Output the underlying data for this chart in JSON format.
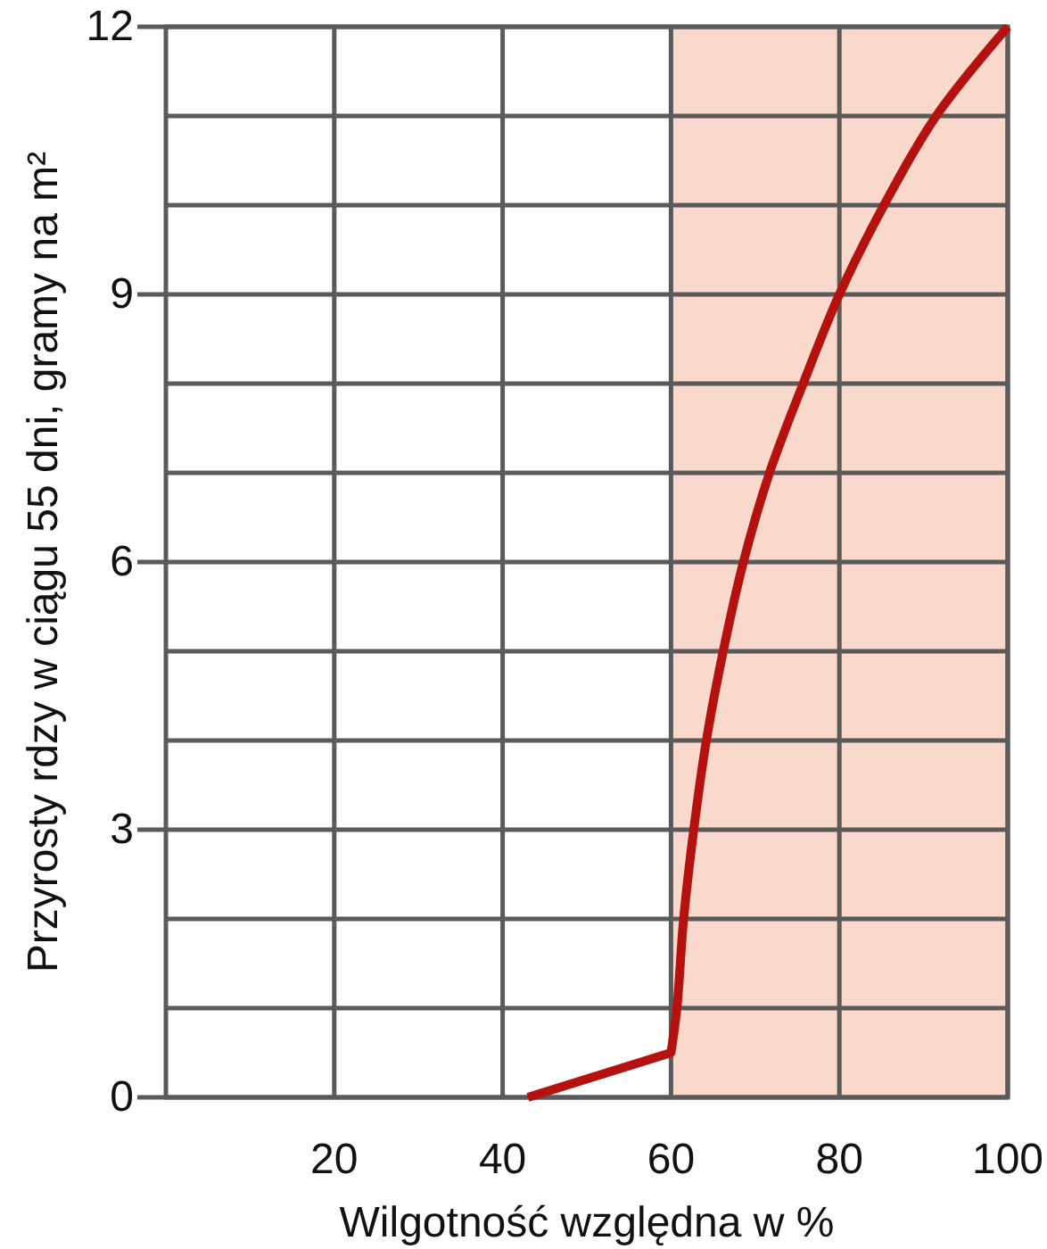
{
  "chart_data": {
    "type": "line",
    "xlabel": "Wilgotność względna w %",
    "ylabel": "Przyrosty rdzy w ciągu 55 dni, gramy na m²",
    "x": [
      43,
      60,
      60.7,
      61.5,
      62.7,
      64.2,
      66.2,
      68.6,
      71.7,
      75.7,
      80,
      85.3,
      91.5,
      100
    ],
    "series": [
      {
        "color": "#b5120f",
        "values": [
          0,
          0.5,
          1,
          2,
          3,
          4,
          5,
          6,
          7,
          8,
          9,
          10,
          11,
          12
        ]
      }
    ],
    "xlim": [
      0,
      100
    ],
    "xticks": [
      20,
      40,
      60,
      80,
      100
    ],
    "ylim": [
      0,
      12
    ],
    "yticks": [
      0,
      {
        "value": 1,
        "label": null
      },
      {
        "value": 2,
        "label": null
      },
      3,
      {
        "value": 4,
        "label": null
      },
      {
        "value": 5,
        "label": null
      },
      6,
      {
        "value": 7,
        "label": null
      },
      {
        "value": 8,
        "label": null
      },
      9,
      {
        "value": 10,
        "label": null
      },
      {
        "value": 11,
        "label": null
      },
      12
    ],
    "bands": [
      {
        "axis": "x",
        "from": 60,
        "to": 100,
        "color": "#f8d9cb"
      }
    ],
    "grid": true
  }
}
